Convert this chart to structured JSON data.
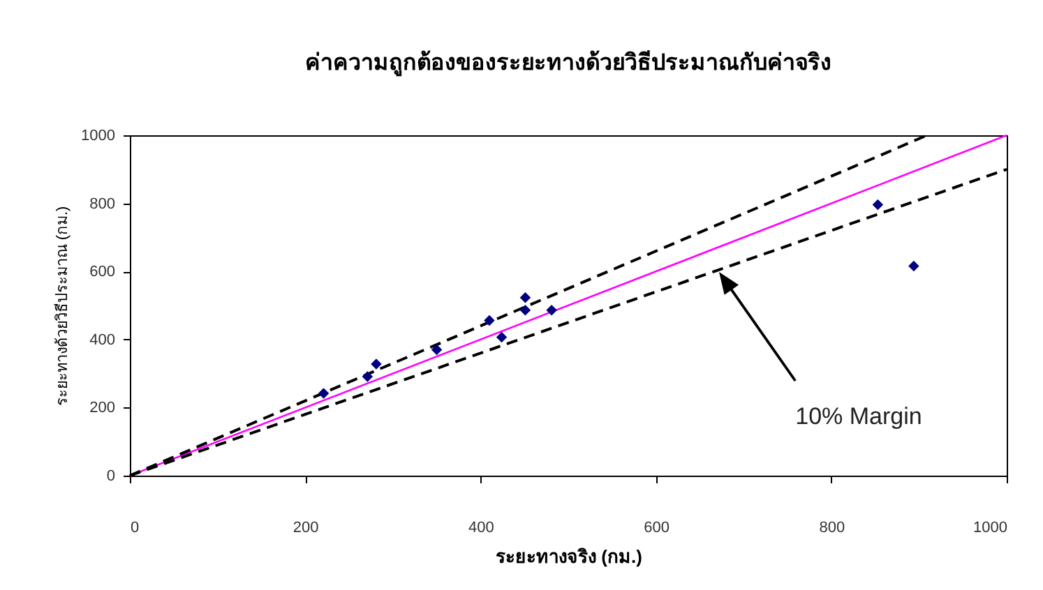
{
  "chart_data": {
    "type": "scatter",
    "title": "ค่าความถูกต้องของระยะทางด้วยวิธีประมาณกับค่าจริง",
    "xlabel": "ระยะทางจริง (กม.)",
    "ylabel": "ระยะทางด้วยวิธีประมาณ (กม.)",
    "xlim": [
      0,
      1000
    ],
    "xticks": [
      0,
      200,
      400,
      600,
      800,
      1000
    ],
    "ylim": [
      0,
      1000
    ],
    "yticks": [
      0,
      200,
      400,
      600,
      800,
      1000
    ],
    "marker": "diamond",
    "series": [
      {
        "color": "#000080",
        "x": [
          221,
          271,
          281,
          350,
          410,
          424,
          451,
          451,
          481,
          853,
          894
        ],
        "values": [
          242,
          291,
          328,
          370,
          456,
          407,
          523,
          486,
          486,
          796,
          616
        ]
      },
      {
        "type": "line",
        "color": "#ff00ff",
        "line_style": "solid",
        "marker": "none",
        "x": [
          0,
          1000
        ],
        "values": [
          0,
          1000
        ]
      },
      {
        "type": "line",
        "color": "#000000",
        "line_style": "dashed",
        "marker": "none",
        "x": [
          0,
          221,
          350,
          481,
          853,
          909
        ],
        "values": [
          0,
          243,
          385,
          529,
          938,
          1000
        ]
      },
      {
        "type": "line",
        "color": "#000000",
        "line_style": "dashed",
        "marker": "none",
        "x": [
          0,
          221,
          350,
          481,
          853,
          1000
        ],
        "values": [
          0,
          199,
          315,
          433,
          768,
          900
        ]
      }
    ],
    "annotations": [
      "10% Margin"
    ]
  }
}
